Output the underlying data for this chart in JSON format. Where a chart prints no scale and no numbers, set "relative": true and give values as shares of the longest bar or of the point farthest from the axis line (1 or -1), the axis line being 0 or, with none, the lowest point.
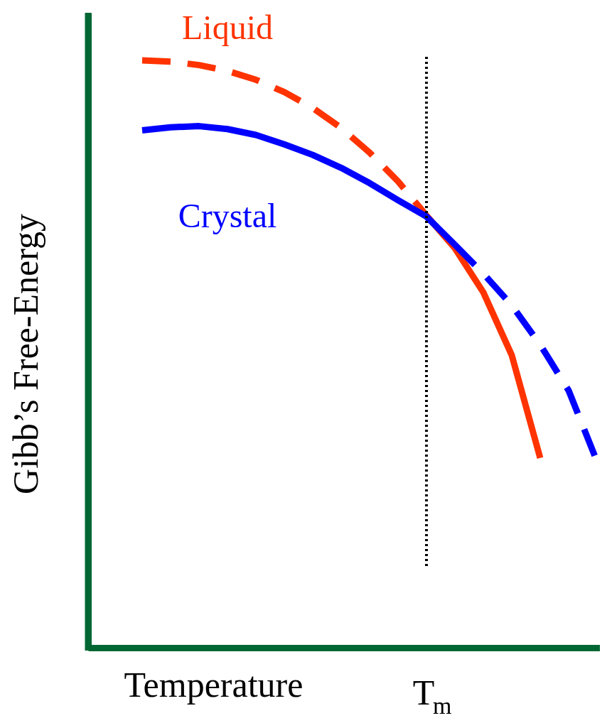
{
  "chart_data": {
    "type": "line",
    "relative": true,
    "xlabel": "Temperature",
    "ylabel": "Gibb’s Free-Energy",
    "marker": "none",
    "categories": [
      null,
      null,
      null,
      null,
      null,
      null,
      null,
      null,
      null,
      null,
      null,
      null,
      null,
      null,
      null,
      null,
      null
    ],
    "series": [
      {
        "name": "Liquid",
        "color": "#ff3300",
        "line_style": "dashed",
        "values": [
          1.0,
          0.998,
          0.992,
          0.982,
          0.967,
          0.946,
          0.919,
          0.885,
          0.843,
          0.794,
          0.736,
          null,
          null,
          null,
          null,
          null,
          null
        ]
      },
      {
        "color": "#ff3300",
        "line_style": "solid",
        "values": [
          null,
          null,
          null,
          null,
          null,
          null,
          null,
          null,
          null,
          null,
          0.736,
          0.68,
          0.605,
          0.498,
          0.323,
          null,
          null
        ]
      },
      {
        "name": "Crystal",
        "color": "#0000ff",
        "line_style": "solid",
        "values": [
          0.881,
          0.886,
          0.888,
          0.883,
          0.873,
          0.857,
          0.839,
          0.817,
          0.791,
          0.762,
          0.734,
          0.686,
          null,
          null,
          null,
          null,
          null
        ]
      },
      {
        "color": "#0000ff",
        "line_style": "dashed",
        "values": [
          null,
          null,
          null,
          null,
          null,
          null,
          null,
          null,
          null,
          null,
          null,
          0.686,
          0.637,
          0.583,
          0.516,
          0.438,
          0.317
        ]
      }
    ],
    "ref_lines": [
      {
        "axis": "x",
        "label": "T$_{m}$",
        "color": "#000000",
        "line_style": "dotted"
      }
    ]
  }
}
